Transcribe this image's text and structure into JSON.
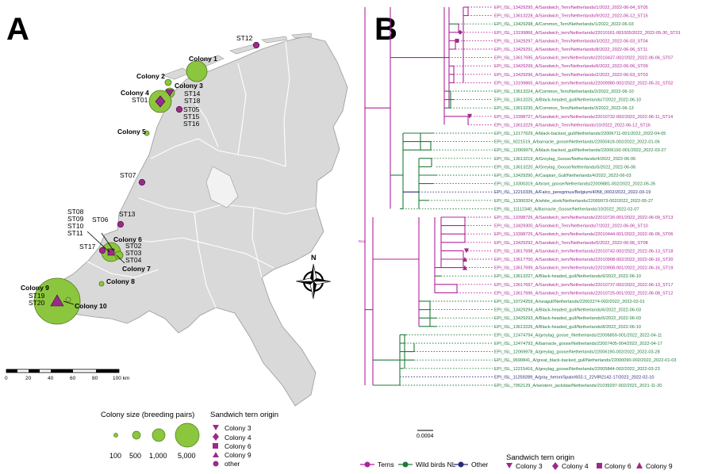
{
  "panelA": {
    "letter": "A",
    "colonies": [
      {
        "label": "Colony 1"
      },
      {
        "label": "Colony 2"
      },
      {
        "label": "Colony 3"
      },
      {
        "label": "Colony 4"
      },
      {
        "label": "Colony 5"
      },
      {
        "label": "Colony 6"
      },
      {
        "label": "Colony 7"
      },
      {
        "label": "Colony 8"
      },
      {
        "label": "Colony 9"
      },
      {
        "label": "Colony 10"
      }
    ],
    "st_labels": [
      "ST12",
      "ST14",
      "ST18",
      "ST01",
      "ST05",
      "ST15",
      "ST16",
      "ST07",
      "ST13",
      "ST06",
      "ST08",
      "ST09",
      "ST10",
      "ST11",
      "ST17",
      "ST02",
      "ST03",
      "ST04",
      "ST19",
      "ST20"
    ],
    "compass": "N",
    "scalebar": {
      "ticks": [
        "0",
        "20",
        "40",
        "60",
        "80",
        "100 km"
      ]
    },
    "size_legend": {
      "title": "Colony size (breeding pairs)",
      "items": [
        "100",
        "500",
        "1,000",
        "5,000"
      ]
    },
    "origin_legend": {
      "title": "Sandwich tern origin",
      "items": [
        "Colony 3",
        "Colony 4",
        "Colony 6",
        "Colony 9",
        "other"
      ]
    }
  },
  "panelB": {
    "letter": "B",
    "root_label": "Root",
    "scale_label": "0.0004",
    "colors": {
      "terns": "#b0239a",
      "wild": "#1f7a3a",
      "other": "#2a2a7a"
    },
    "tips": [
      {
        "label": "EPI_ISL_13429295_A/Sandwich_Tern/Netherlands/1/2022_2022-06-04_ST05",
        "group": "terns"
      },
      {
        "label": "EPI_ISL_13613228_A/Sandwich_Tern/Netherlands/9/2022_2022-06-12_ST15",
        "group": "terns"
      },
      {
        "label": "EPI_ISL_13429298_A/Common_Tern/Netherlands/1/2022_2022-06-03",
        "group": "wild"
      },
      {
        "label": "EPI_ISL_13199866_A/Sandwich_tern/Netherlands/22010161-001005/2022_2022-05-30_ST01",
        "group": "terns"
      },
      {
        "label": "EPI_ISL_13429297_A/Sandwich_Tern/Netherlands/3/2022_2022-06-03_ST04",
        "group": "terns"
      },
      {
        "label": "EPI_ISL_13429291_A/Sandwich_Tern/Netherlands/8/2022_2022-06-06_ST11",
        "group": "terns"
      },
      {
        "label": "EPI_ISL_13617695_A/Sandwich_tern/Netherlands/22010437-002/2022_2022-06-06_ST07",
        "group": "terns"
      },
      {
        "label": "EPI_ISL_13429299_A/Sandwich_Tern/Netherlands/6/2022_2022-06-06_ST09",
        "group": "terns"
      },
      {
        "label": "EPI_ISL_13429296_A/Sandwich_Tern/Netherlands/2/2022_2022-06-03_ST03",
        "group": "terns"
      },
      {
        "label": "EPI_ISL_13199865_A/Sandwich_tern/Netherlands/22009980-002/2022_2022-05-31_ST02",
        "group": "terns"
      },
      {
        "label": "EPI_ISL_13613224_A/Common_Tern/Netherlands/2/2022_2022-06-10",
        "group": "wild"
      },
      {
        "label": "EPI_ISL_13613225_A/Black-headed_gull/Netherlands/7/2022_2022-06-10",
        "group": "wild"
      },
      {
        "label": "EPI_ISL_13613230_A/Common_Tern/Netherlands/3/2022_2022-06-13",
        "group": "wild"
      },
      {
        "label": "EPI_ISL_13398727_A/Sandwich_tern/Netherlands/22010732-002/2022_2022-06-11_ST14",
        "group": "terns"
      },
      {
        "label": "EPI_ISL_13613229_A/Sandwich_Tern/Netherlands/10/2022_2022-06-12_ST16",
        "group": "terns"
      },
      {
        "label": "EPI_ISL_12177629_A/black-backed_gull/Netherlands/22006711-001/2022_2022-04-05",
        "group": "wild"
      },
      {
        "label": "EPI_ISL_9221519_A/barnacle_goose/Netherlands/22000419-002/2022_2022-01-06",
        "group": "wild"
      },
      {
        "label": "EPI_ISL_12069979_A/black-backed_gull/Netherlands/22006192-001/2022_2022-03-27",
        "group": "wild"
      },
      {
        "label": "EPI_ISL_13613219_A/Greylag_Goose/Netherlands/4/2022_2022-06-06",
        "group": "wild"
      },
      {
        "label": "EPI_ISL_13613220_A/Greylag_Goose/Netherlands/5/2022_2022-06-06",
        "group": "wild"
      },
      {
        "label": "EPI_ISL_13429290_A/Caspian_Gull/Netherlands/4/2022_2022-06-03",
        "group": "wild"
      },
      {
        "label": "EPI_ISL_13300319_A/brant_goose/Netherlands/22009881-002/2022_2022-05-26",
        "group": "wild"
      },
      {
        "label": "EPI_ISL_12210335_A/Falco_peregrinus/Belgium/4058_0002/2022_2022-03-19",
        "group": "other"
      },
      {
        "label": "EPI_ISL_13300324_A/white_stork/Netherlands/22009973-002/2022_2022-05-27",
        "group": "wild"
      },
      {
        "label": "EPI_ISL_11112340_A/Barnacle_Goose/Netherlands/10/2022_2022-02-07",
        "group": "wild"
      },
      {
        "label": "EPI_ISL_13398726_A/Sandwich_tern/Netherlands/22010726-001/2022_2022-06-09_ST13",
        "group": "terns"
      },
      {
        "label": "EPI_ISL_13429300_A/Sandwich_Tern/Netherlands/7/2022_2022-06-06_ST10",
        "group": "terns"
      },
      {
        "label": "EPI_ISL_13398725_A/Sandwich_tern/Netherlands/22010444-001/2022_2022-06-06_ST06",
        "group": "terns"
      },
      {
        "label": "EPI_ISL_13429292_A/Sandwich_Tern/Netherlands/5/2022_2022-06-06_ST08",
        "group": "terns"
      },
      {
        "label": "EPI_ISL_13617698_A/Sandwich_tern/Netherlands/22010742-002/2022_2022-06-13_ST18",
        "group": "terns"
      },
      {
        "label": "EPI_ISL_13617700_A/Sandwich_tern/Netherlands/22010908-002/2022_2022-06-16_ST20",
        "group": "terns"
      },
      {
        "label": "EPI_ISL_13617699_A/Sandwich_tern/Netherlands/22010908-001/2022_2022-06-16_ST19",
        "group": "terns"
      },
      {
        "label": "EPI_ISL_13613227_A/Black-headed_gull/Netherlands/9/2022_2022-06-10",
        "group": "wild"
      },
      {
        "label": "EPI_ISL_13617697_A/Sandwich_tern/Netherlands/22010737-002/2022_2022-06-13_ST17",
        "group": "terns"
      },
      {
        "label": "EPI_ISL_13617696_A/Sandwich_tern/Netherlands/22010725-001/2022_2022-06-08_ST12",
        "group": "terns"
      },
      {
        "label": "EPI_ISL_10724259_A/seagull/Netherlands/22002274-002/2022_2022-02-01",
        "group": "wild"
      },
      {
        "label": "EPI_ISL_13429294_A/Black-headed_gull/Netherlands/6/2022_2022-06-03",
        "group": "wild"
      },
      {
        "label": "EPI_ISL_13429293_A/Black-headed_gull/Netherlands/5/2022_2022-06-03",
        "group": "wild"
      },
      {
        "label": "EPI_ISL_13613226_A/Black-headed_gull/Netherlands/8/2022_2022-06-10",
        "group": "wild"
      },
      {
        "label": "EPI_ISL_12474794_A/greylag_goose_/Netherlands/22006859-001/2022_2022-04-11",
        "group": "wild"
      },
      {
        "label": "EPI_ISL_12474793_A/barnacle_goose/Netherlands/22007405-004/2022_2022-04-17",
        "group": "wild"
      },
      {
        "label": "EPI_ISL_12069978_A/greylag_goose/Netherlands/22006190-002/2022_2022-03-28",
        "group": "wild"
      },
      {
        "label": "EPI_ISL_9690841_A/great_black-backed_gull/Netherlands/22000090-002/2022_2022-01-03",
        "group": "wild"
      },
      {
        "label": "EPI_ISL_12215416_A/greylag_goose/Netherlands/22005844-002/2022_2022-03-23",
        "group": "wild"
      },
      {
        "label": "EPI_ISL_11259289_A/gray_heron/Spain/602-1_22VIR2142-17/2022_2022-02-10",
        "group": "other"
      },
      {
        "label": "EPI_ISL_7952129_A/western_jackdaw/Netherlands/21039297-002/2021_2021-11-20",
        "group": "wild"
      }
    ],
    "group_legend": {
      "items": [
        "Terns",
        "Wild birds NL",
        "Other"
      ]
    },
    "origin_legend": {
      "title": "Sandwich tern origin",
      "items": [
        "Colony 3",
        "Colony 4",
        "Colony 6",
        "Colony 9"
      ]
    }
  }
}
